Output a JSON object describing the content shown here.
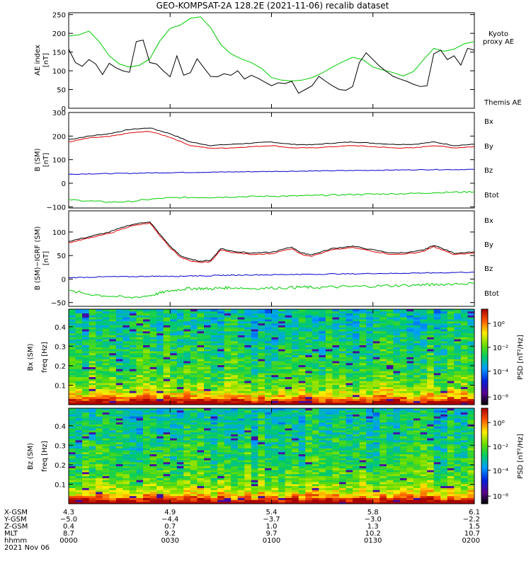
{
  "title": "GEO-KOMPSAT-2A 128.2E (2021-11-06) recalib dataset",
  "x_range_minutes": [
    0,
    120
  ],
  "x_ticks": [
    0,
    30,
    60,
    90,
    120
  ],
  "panels": {
    "ae": {
      "ylabel": "AE index",
      "yunit": "[nT]",
      "ylim": [
        0,
        255
      ],
      "yticks": [
        "0",
        "50",
        "100",
        "150",
        "200",
        "250"
      ],
      "legend": [
        {
          "text": "Kyoto",
          "color": "#00cc00"
        },
        {
          "text": "proxy AE",
          "color": "#00cc00"
        },
        {
          "text": "Themis AE",
          "color": "#000000"
        }
      ]
    },
    "b": {
      "ylabel": "B (SM)",
      "yunit": "[nT]",
      "ylim": [
        -105,
        300
      ],
      "yticks": [
        "−100",
        "0",
        "100",
        "200",
        "300"
      ],
      "legend": [
        {
          "text": "Bx",
          "color": "#0000cc"
        },
        {
          "text": "By",
          "color": "#00cc00"
        },
        {
          "text": "Bz",
          "color": "#dd0000"
        },
        {
          "text": "Btot",
          "color": "#000000"
        }
      ]
    },
    "bi": {
      "ylabel": "B (SM)−IGRF (SM)",
      "yunit": "[nT]",
      "ylim": [
        -58,
        145
      ],
      "yticks": [
        "−50",
        "0",
        "50",
        "100"
      ],
      "legend": [
        {
          "text": "Bx",
          "color": "#0000cc"
        },
        {
          "text": "By",
          "color": "#00cc00"
        },
        {
          "text": "Bz",
          "color": "#dd0000"
        },
        {
          "text": "Btot",
          "color": "#000000"
        }
      ]
    },
    "sx": {
      "ylabel": "Bx (SM)",
      "flabel": "freq [Hz]",
      "ylim": [
        0,
        0.49
      ],
      "yticks": [
        "0.1",
        "0.2",
        "0.3",
        "0.4"
      ],
      "cb_label": "PSD [nT²/Hz]",
      "cb_ticks": [
        "10⁰",
        "10⁻²",
        "10⁻⁴",
        "10⁻⁶"
      ]
    },
    "sz": {
      "ylabel": "Bz (SM)",
      "flabel": "freq [Hz]",
      "ylim": [
        0,
        0.49
      ],
      "yticks": [
        "0.1",
        "0.2",
        "0.3",
        "0.4"
      ],
      "cb_label": "PSD [nT²/Hz]",
      "cb_ticks": [
        "10⁰",
        "10⁻²",
        "10⁻⁴",
        "10⁻⁶"
      ]
    }
  },
  "ephemeris": {
    "labels": [
      "X-GSM",
      "Y-GSM",
      "Z-GSM",
      "MLT",
      "hhmm",
      "2021 Nov 06"
    ],
    "columns": [
      [
        "4.3",
        "−5.0",
        "0.4",
        "8.7",
        "0000"
      ],
      [
        "4.9",
        "−4.4",
        "0.7",
        "9.2",
        "0030"
      ],
      [
        "5.4",
        "−3.7",
        "1.0",
        "9.7",
        "0100"
      ],
      [
        "5.8",
        "−3.0",
        "1.3",
        "10.2",
        "0130"
      ],
      [
        "6.1",
        "−2.2",
        "1.5",
        "10.7",
        "0200"
      ]
    ]
  },
  "chart_data": [
    {
      "type": "line",
      "title": "GEO-KOMPSAT-2A 128.2E (2021-11-06) recalib dataset",
      "ylabel": "AE index [nT]",
      "ylim": [
        0,
        255
      ],
      "x_unit": "minutes since 0000 UT",
      "series": [
        {
          "name": "Kyoto proxy AE",
          "color": "#00cc00",
          "x": [
            0,
            3,
            6,
            9,
            12,
            15,
            18,
            21,
            24,
            27,
            30,
            33,
            36,
            39,
            42,
            45,
            48,
            51,
            54,
            57,
            60,
            63,
            66,
            69,
            72,
            75,
            78,
            81,
            84,
            87,
            90,
            93,
            96,
            99,
            102,
            105,
            108,
            111,
            114,
            117,
            120
          ],
          "y": [
            193,
            196,
            206,
            178,
            140,
            118,
            110,
            115,
            132,
            180,
            213,
            222,
            240,
            244,
            215,
            170,
            145,
            132,
            122,
            107,
            82,
            75,
            73,
            75,
            82,
            94,
            110,
            124,
            136,
            130,
            110,
            102,
            95,
            86,
            98,
            130,
            160,
            152,
            158,
            172,
            178
          ]
        },
        {
          "name": "Themis AE",
          "color": "#000000",
          "x": [
            0,
            2,
            4,
            6,
            8,
            10,
            12,
            14,
            16,
            18,
            20,
            22,
            24,
            26,
            28,
            30,
            32,
            34,
            36,
            38,
            40,
            42,
            44,
            46,
            48,
            50,
            52,
            54,
            56,
            58,
            60,
            62,
            64,
            66,
            68,
            70,
            72,
            74,
            76,
            78,
            80,
            82,
            84,
            86,
            88,
            90,
            92,
            94,
            96,
            98,
            100,
            102,
            104,
            106,
            108,
            110,
            112,
            114,
            116,
            118,
            120
          ],
          "y": [
            158,
            122,
            112,
            130,
            118,
            90,
            120,
            108,
            100,
            96,
            178,
            182,
            122,
            118,
            100,
            84,
            140,
            88,
            95,
            132,
            108,
            85,
            84,
            92,
            88,
            100,
            78,
            88,
            80,
            70,
            60,
            68,
            66,
            72,
            40,
            50,
            60,
            85,
            72,
            60,
            50,
            48,
            58,
            122,
            148,
            130,
            112,
            98,
            85,
            78,
            72,
            64,
            58,
            60,
            145,
            155,
            130,
            140,
            115,
            160,
            155
          ]
        }
      ]
    },
    {
      "type": "line",
      "ylabel": "B (SM) [nT]",
      "ylim": [
        -105,
        300
      ],
      "x_unit": "minutes since 0000 UT",
      "x": [
        0,
        6,
        12,
        18,
        24,
        30,
        36,
        42,
        48,
        54,
        60,
        66,
        72,
        78,
        84,
        90,
        96,
        102,
        108,
        114,
        120
      ],
      "series": [
        {
          "name": "Btot",
          "color": "#000000",
          "values": [
            185,
            200,
            210,
            228,
            235,
            210,
            175,
            160,
            165,
            170,
            175,
            165,
            163,
            170,
            175,
            170,
            165,
            165,
            175,
            160,
            165
          ]
        },
        {
          "name": "Bz",
          "color": "#dd0000",
          "values": [
            175,
            192,
            198,
            213,
            220,
            195,
            160,
            148,
            150,
            155,
            160,
            150,
            150,
            155,
            160,
            155,
            150,
            150,
            160,
            150,
            155
          ]
        },
        {
          "name": "Bx",
          "color": "#0000cc",
          "values": [
            38,
            40,
            41,
            42,
            44,
            45,
            46,
            47,
            48,
            49,
            50,
            51,
            52,
            53,
            54,
            55,
            56,
            57,
            58,
            58,
            59
          ]
        },
        {
          "name": "By",
          "color": "#00cc00",
          "values": [
            -70,
            -75,
            -80,
            -78,
            -68,
            -62,
            -60,
            -60,
            -58,
            -56,
            -55,
            -54,
            -52,
            -50,
            -48,
            -46,
            -45,
            -43,
            -40,
            -38,
            -36
          ]
        }
      ]
    },
    {
      "type": "line",
      "ylabel": "B (SM)−IGRF (SM) [nT]",
      "ylim": [
        -58,
        145
      ],
      "x_unit": "minutes since 0000 UT",
      "x": [
        0,
        6,
        12,
        18,
        24,
        27,
        30,
        33,
        36,
        39,
        42,
        45,
        48,
        54,
        60,
        66,
        69,
        72,
        78,
        84,
        90,
        96,
        102,
        105,
        108,
        114,
        120
      ],
      "series": [
        {
          "name": "Btot",
          "color": "#000000",
          "values": [
            80,
            90,
            100,
            115,
            122,
            95,
            70,
            50,
            42,
            38,
            40,
            65,
            60,
            55,
            57,
            68,
            55,
            52,
            65,
            70,
            62,
            55,
            58,
            62,
            72,
            55,
            58
          ]
        },
        {
          "name": "Bz",
          "color": "#dd0000",
          "values": [
            77,
            87,
            97,
            112,
            119,
            92,
            67,
            47,
            39,
            35,
            37,
            62,
            57,
            52,
            54,
            65,
            52,
            49,
            62,
            67,
            59,
            52,
            55,
            59,
            69,
            52,
            55
          ]
        },
        {
          "name": "Bx",
          "color": "#0000cc",
          "values": [
            3,
            4,
            5,
            5,
            6,
            6,
            6,
            6,
            7,
            7,
            7,
            8,
            8,
            9,
            9,
            10,
            10,
            10,
            11,
            11,
            12,
            12,
            13,
            13,
            13,
            14,
            15
          ]
        },
        {
          "name": "By",
          "color": "#00cc00",
          "values": [
            -25,
            -32,
            -36,
            -40,
            -35,
            -30,
            -25,
            -22,
            -20,
            -20,
            -21,
            -19,
            -18,
            -20,
            -19,
            -18,
            -17,
            -18,
            -17,
            -16,
            -15,
            -14,
            -13,
            -12,
            -12,
            -10,
            -9
          ]
        }
      ]
    },
    {
      "type": "heatmap",
      "ylabel": "Bx (SM) freq [Hz]",
      "ylim": [
        0,
        0.49
      ],
      "x_unit": "minutes since 0000 UT",
      "colorbar": "PSD [nT²/Hz]"
    },
    {
      "type": "heatmap",
      "ylabel": "Bz (SM) freq [Hz]",
      "ylim": [
        0,
        0.49
      ],
      "x_unit": "minutes since 0000 UT",
      "colorbar": "PSD [nT²/Hz]"
    }
  ]
}
